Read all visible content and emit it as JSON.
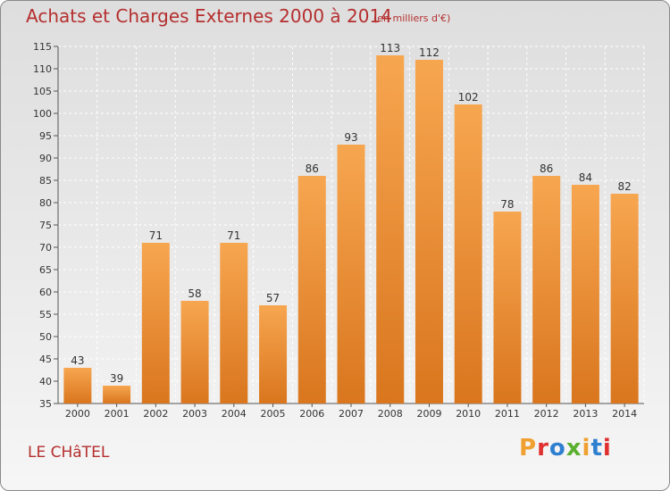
{
  "header": {
    "title": "Achats et Charges Externes 2000 à 2014",
    "subtitle": "(en milliers d'€)"
  },
  "footer": {
    "commune": "LE CHâTEL",
    "brand": "Proxiti",
    "brand_colors": [
      "#f0a030",
      "#e03030",
      "#2f7fd0",
      "#5cb030",
      "#f0a030",
      "#2f7fd0",
      "#e03030"
    ]
  },
  "colors": {
    "bar_top": "#f7a650",
    "bar_bottom": "#d9761e",
    "grid": "#ffffff",
    "title": "#b52e2e"
  },
  "chart_data": {
    "type": "bar",
    "title": "Achats et Charges Externes 2000 à 2014",
    "categories": [
      "2000",
      "2001",
      "2002",
      "2003",
      "2004",
      "2005",
      "2006",
      "2007",
      "2008",
      "2009",
      "2010",
      "2011",
      "2012",
      "2013",
      "2014"
    ],
    "values": [
      43,
      39,
      71,
      58,
      71,
      57,
      86,
      93,
      113,
      112,
      102,
      78,
      86,
      84,
      82
    ],
    "ylim": [
      35,
      115
    ],
    "yticks": [
      35,
      40,
      45,
      50,
      55,
      60,
      65,
      70,
      75,
      80,
      85,
      90,
      95,
      100,
      105,
      110,
      115
    ],
    "grid": true,
    "legend": "none"
  }
}
